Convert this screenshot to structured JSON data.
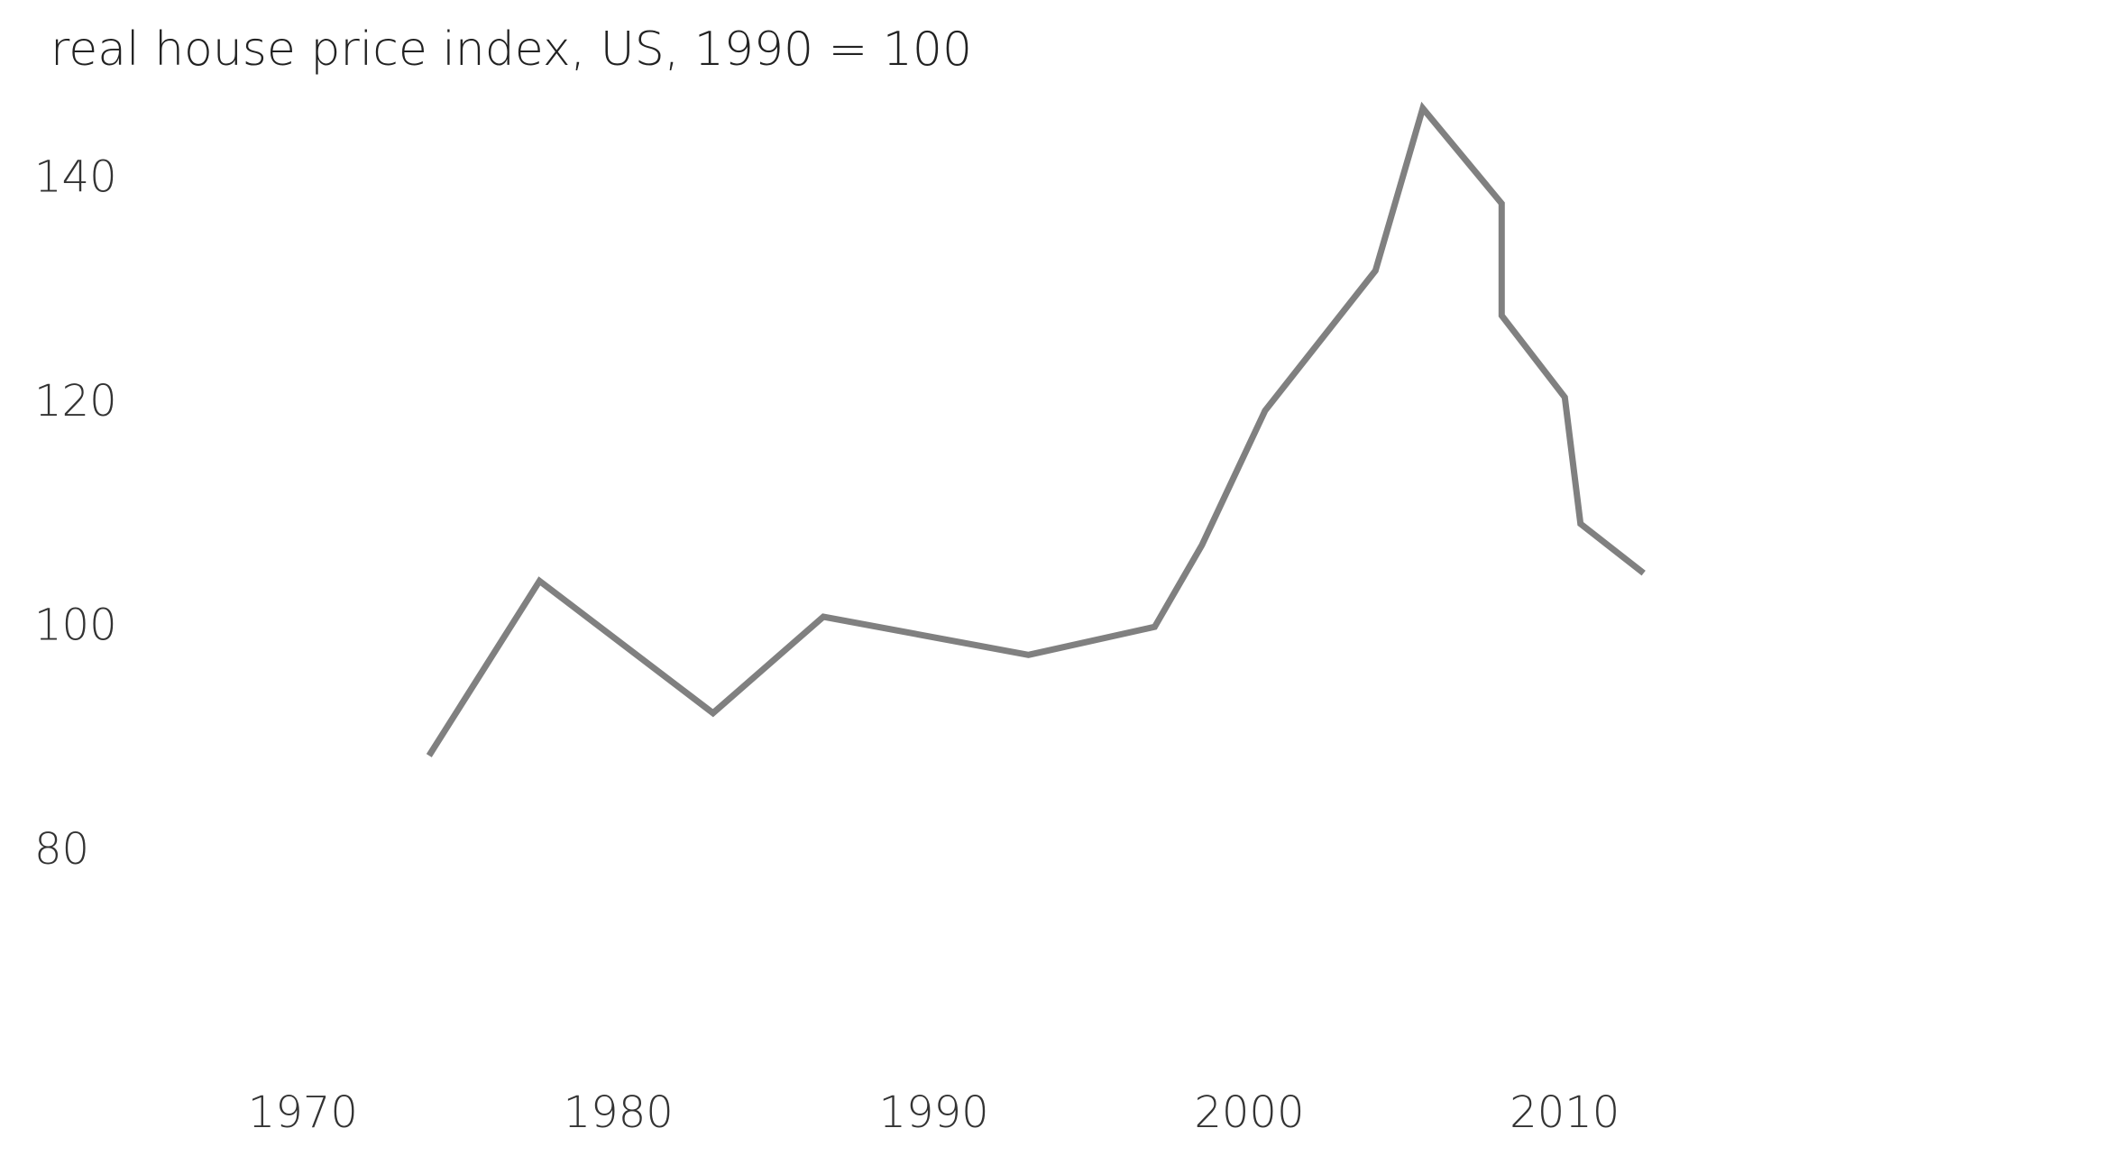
{
  "chart_data": {
    "type": "line",
    "title": "real house price index, US, 1990 = 100",
    "xlabel": "",
    "ylabel": "",
    "xlim": [
      1962,
      2026
    ],
    "ylim": [
      56,
      151
    ],
    "grid": false,
    "x_ticks": [
      1970,
      1980,
      1990,
      2000,
      2010
    ],
    "y_ticks": [
      80,
      100,
      120,
      140
    ],
    "x_tick_labels": [
      "1970",
      "1980",
      "1990",
      "2000",
      "2010"
    ],
    "y_tick_labels": [
      "80",
      "100",
      "120",
      "140"
    ],
    "line_color": "#808080",
    "series": [
      {
        "x": [
          1974,
          1977.5,
          1983,
          1986.5,
          1993,
          1997,
          1998.5,
          2000.5,
          2004,
          2005.5,
          2008,
          2008,
          2010,
          2010.5,
          2012.5
        ],
        "y": [
          88.2,
          103.8,
          92,
          100.6,
          97.2,
          99.7,
          107,
          119,
          131.5,
          146,
          137.5,
          127.5,
          120.2,
          108.9,
          104.5
        ]
      }
    ]
  }
}
